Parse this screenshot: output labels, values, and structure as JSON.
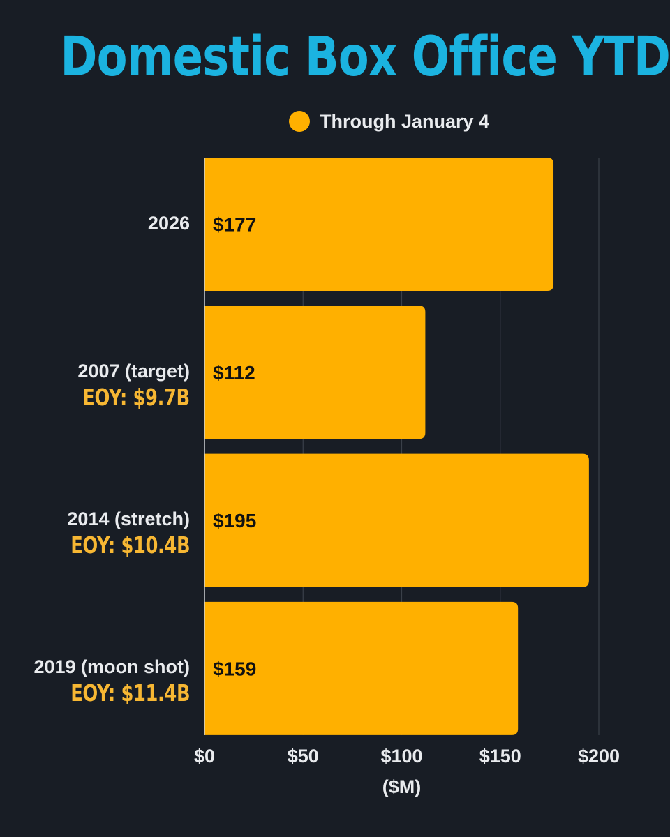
{
  "chart_data": {
    "type": "bar",
    "orientation": "horizontal",
    "title": "Domestic Box Office YTD",
    "categories": [
      "2026",
      "2007 (target)",
      "2014 (stretch)",
      "2019 (moon shot)"
    ],
    "category_notes": [
      "",
      "EOY: $9.7B",
      "EOY: $10.4B",
      "EOY: $11.4B"
    ],
    "series": [
      {
        "name": "Through January 4",
        "values": [
          177,
          112,
          195,
          159
        ],
        "value_labels": [
          "$177",
          "$112",
          "$195",
          "$159"
        ],
        "color": "#ffb000"
      }
    ],
    "xlabel": "($M)",
    "xlim": [
      0,
      200
    ],
    "xticks": [
      0,
      50,
      100,
      150,
      200
    ],
    "xtick_labels": [
      "$0",
      "$50",
      "$100",
      "$150",
      "$200"
    ],
    "grid": true,
    "legend_position": "top"
  },
  "colors": {
    "background": "#181d25",
    "title": "#1bb3e0",
    "bar": "#ffb000",
    "note": "#f7b733",
    "text": "#e9ebee",
    "grid": "#3a4049"
  }
}
